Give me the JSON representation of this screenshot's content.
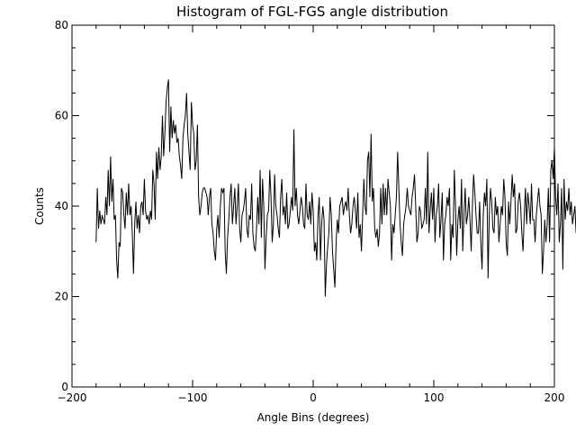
{
  "chart_data": {
    "type": "line",
    "title": "Histogram of FGL-FGS angle distribution",
    "xlabel": "Angle Bins (degrees)",
    "ylabel": "Counts",
    "xlim": [
      -200,
      200
    ],
    "ylim": [
      0,
      80
    ],
    "xticks": [
      -200,
      -100,
      0,
      100,
      200
    ],
    "yticks": [
      0,
      20,
      40,
      60,
      80
    ],
    "xtick_labels": [
      "−200",
      "−100",
      "0",
      "100",
      "200"
    ],
    "ytick_labels": [
      "0",
      "20",
      "40",
      "60",
      "80"
    ],
    "grid": false,
    "line_color": "#000000",
    "x_start": -180,
    "x_step": 1,
    "values": [
      32,
      44,
      35,
      39,
      36,
      38,
      37,
      36,
      42,
      38,
      48,
      40,
      51,
      41,
      46,
      37,
      38,
      28,
      24,
      32,
      31,
      44,
      43,
      38,
      35,
      43,
      38,
      45,
      38,
      40,
      34,
      25,
      36,
      41,
      35,
      38,
      34,
      40,
      41,
      38,
      46,
      39,
      37,
      38,
      36,
      39,
      37,
      48,
      45,
      37,
      52,
      46,
      53,
      48,
      51,
      60,
      51,
      56,
      63,
      66,
      68,
      52,
      62,
      55,
      59,
      56,
      58,
      54,
      55,
      51,
      49,
      46,
      55,
      58,
      60,
      65,
      56,
      52,
      48,
      63,
      58,
      56,
      48,
      50,
      58,
      42,
      38,
      40,
      43,
      44,
      44,
      43,
      42,
      38,
      42,
      44,
      36,
      34,
      30,
      28,
      35,
      38,
      33,
      40,
      44,
      43,
      44,
      30,
      25,
      33,
      37,
      42,
      45,
      36,
      40,
      44,
      36,
      40,
      45,
      35,
      32,
      38,
      39,
      41,
      44,
      35,
      33,
      38,
      37,
      45,
      34,
      31,
      30,
      35,
      42,
      36,
      48,
      33,
      46,
      40,
      26,
      33,
      38,
      39,
      48,
      42,
      32,
      36,
      47,
      40,
      38,
      35,
      33,
      42,
      46,
      38,
      40,
      36,
      43,
      35,
      36,
      39,
      42,
      39,
      57,
      40,
      44,
      38,
      36,
      39,
      42,
      40,
      36,
      35,
      45,
      38,
      37,
      41,
      36,
      43,
      39,
      30,
      32,
      28,
      38,
      42,
      28,
      36,
      40,
      37,
      20,
      27,
      31,
      34,
      42,
      38,
      30,
      26,
      22,
      32,
      37,
      34,
      40,
      41,
      42,
      38,
      40,
      41,
      39,
      44,
      38,
      34,
      36,
      40,
      42,
      39,
      35,
      43,
      33,
      36,
      30,
      38,
      46,
      40,
      38,
      50,
      52,
      42,
      56,
      41,
      44,
      35,
      33,
      35,
      31,
      34,
      44,
      36,
      45,
      38,
      44,
      38,
      46,
      43,
      40,
      28,
      36,
      34,
      38,
      42,
      52,
      44,
      36,
      32,
      29,
      36,
      38,
      40,
      44,
      40,
      39,
      38,
      42,
      44,
      47,
      40,
      32,
      34,
      40,
      39,
      35,
      36,
      37,
      44,
      36,
      52,
      34,
      39,
      43,
      37,
      44,
      32,
      38,
      40,
      45,
      33,
      37,
      43,
      28,
      36,
      38,
      42,
      40,
      44,
      28,
      36,
      33,
      48,
      40,
      29,
      37,
      40,
      35,
      46,
      30,
      38,
      44,
      36,
      38,
      42,
      37,
      30,
      40,
      47,
      43,
      38,
      34,
      34,
      41,
      32,
      26,
      38,
      43,
      40,
      46,
      24,
      38,
      44,
      41,
      35,
      34,
      42,
      38,
      40,
      32,
      36,
      40,
      38,
      46,
      42,
      32,
      29,
      41,
      36,
      41,
      47,
      42,
      45,
      34,
      35,
      41,
      43,
      40,
      34,
      30,
      38,
      44,
      36,
      43,
      40,
      36,
      45,
      37,
      37,
      32,
      38,
      41,
      44,
      40,
      38,
      25,
      30,
      37,
      32,
      36,
      44,
      32,
      48,
      50,
      46,
      53,
      42,
      38,
      45,
      32,
      36,
      44,
      26,
      46,
      37,
      41,
      39,
      44,
      38,
      41,
      36,
      38,
      40,
      34,
      42,
      36,
      38,
      38,
      43,
      33,
      37,
      36,
      35,
      55,
      47,
      38,
      40,
      30,
      36,
      42,
      50,
      44,
      38,
      43,
      37,
      36,
      39,
      32,
      39,
      43,
      54,
      35,
      38,
      40,
      34,
      41,
      33,
      34,
      36,
      31,
      43,
      30,
      41,
      38,
      35,
      32,
      42,
      35,
      44,
      40,
      36,
      34,
      33,
      40,
      39,
      1
    ]
  }
}
